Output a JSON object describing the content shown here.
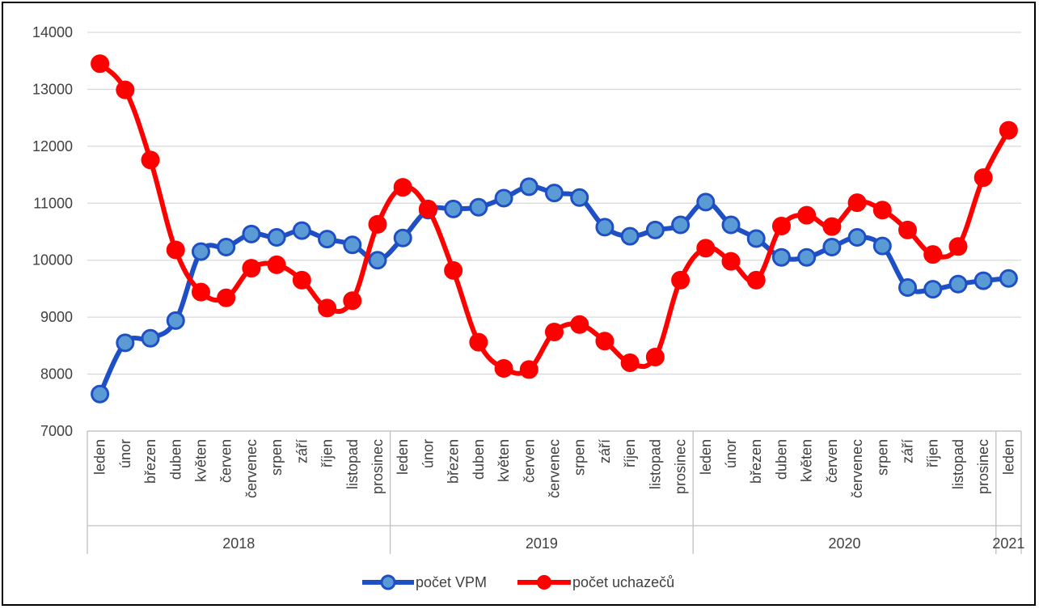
{
  "chart_data": {
    "type": "line",
    "title": "",
    "xlabel": "",
    "ylabel": "",
    "ylim": [
      7000,
      14000
    ],
    "yticks": [
      7000,
      8000,
      9000,
      10000,
      11000,
      12000,
      13000,
      14000
    ],
    "grid": true,
    "legend_position": "bottom",
    "categories": [
      "leden",
      "únor",
      "březen",
      "duben",
      "květen",
      "červen",
      "červenec",
      "srpen",
      "září",
      "říjen",
      "listopad",
      "prosinec",
      "leden",
      "únor",
      "březen",
      "duben",
      "květen",
      "červen",
      "červenec",
      "srpen",
      "září",
      "říjen",
      "listopad",
      "prosinec",
      "leden",
      "únor",
      "březen",
      "duben",
      "květen",
      "červen",
      "červenec",
      "srpen",
      "září",
      "říjen",
      "listopad",
      "prosinec",
      "leden"
    ],
    "year_groups": [
      {
        "label": "2018",
        "count": 12
      },
      {
        "label": "2019",
        "count": 12
      },
      {
        "label": "2020",
        "count": 12
      },
      {
        "label": "2021",
        "count": 1
      }
    ],
    "series": [
      {
        "name": "počet VPM",
        "color": "#1f4fc4",
        "values": [
          7650,
          8550,
          8630,
          8940,
          10150,
          10230,
          10460,
          10400,
          10520,
          10370,
          10270,
          10000,
          10390,
          10880,
          10900,
          10930,
          11090,
          11290,
          11180,
          11100,
          10580,
          10420,
          10530,
          10620,
          11020,
          10620,
          10380,
          10050,
          10050,
          10230,
          10400,
          10250,
          9520,
          9490,
          9580,
          9640,
          9680
        ]
      },
      {
        "name": "počet uchazečů",
        "color": "#ff0000",
        "values": [
          13450,
          12990,
          11760,
          10180,
          9440,
          9340,
          9860,
          9920,
          9650,
          9160,
          9290,
          10630,
          11280,
          10900,
          9820,
          8560,
          8100,
          8080,
          8740,
          8870,
          8580,
          8200,
          8300,
          9650,
          10210,
          9980,
          9650,
          10600,
          10790,
          10590,
          11010,
          10880,
          10530,
          10100,
          10240,
          11450,
          12280
        ]
      }
    ]
  }
}
